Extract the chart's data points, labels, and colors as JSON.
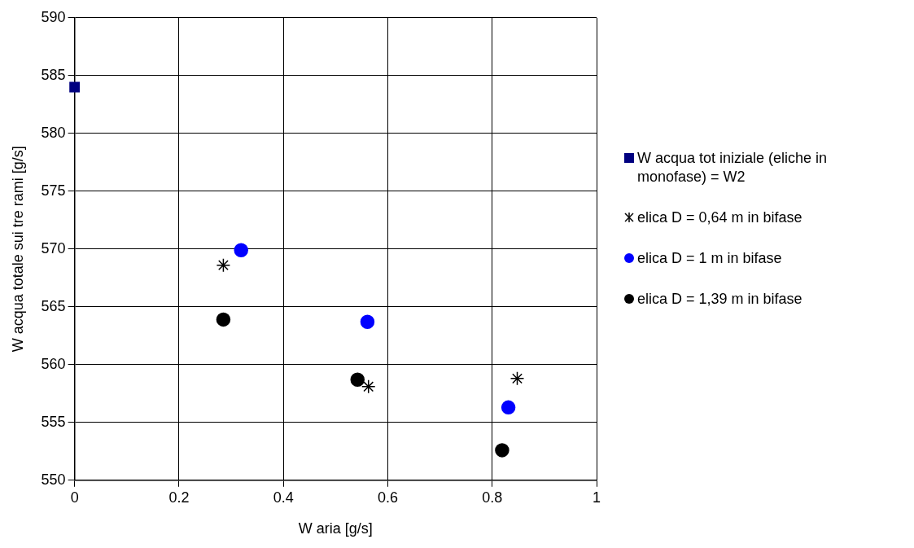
{
  "chart_data": {
    "type": "scatter",
    "xlabel": "W aria [g/s]",
    "ylabel": "W acqua totale sui tre rami [g/s]",
    "xlim": [
      0,
      1
    ],
    "xticks": [
      0,
      0.2,
      0.4,
      0.6,
      0.8,
      1
    ],
    "ylim": [
      550,
      590
    ],
    "yticks": [
      550,
      555,
      560,
      565,
      570,
      575,
      580,
      585,
      590
    ],
    "grid": true,
    "legend": "right",
    "series": [
      {
        "name": "W acqua tot iniziale (eliche in monofase) = W2",
        "color": "#000080",
        "marker": "square",
        "x": [
          0
        ],
        "values": [
          584
        ]
      },
      {
        "name": "elica D = 0,64 m in bifase",
        "color": "#000000",
        "marker": "cross",
        "x": [
          0.285,
          0.563,
          0.848
        ],
        "values": [
          568.6,
          558.1,
          558.8
        ]
      },
      {
        "name": "elica D = 1 m in bifase",
        "color": "#0000ff",
        "marker": "circle",
        "x": [
          0.319,
          0.561,
          0.831
        ],
        "values": [
          569.9,
          563.7,
          556.3
        ]
      },
      {
        "name": "elica D = 1,39 m in bifase",
        "color": "#000000",
        "marker": "circle",
        "x": [
          0.285,
          0.542,
          0.819
        ],
        "values": [
          563.9,
          558.7,
          552.6
        ]
      }
    ]
  }
}
